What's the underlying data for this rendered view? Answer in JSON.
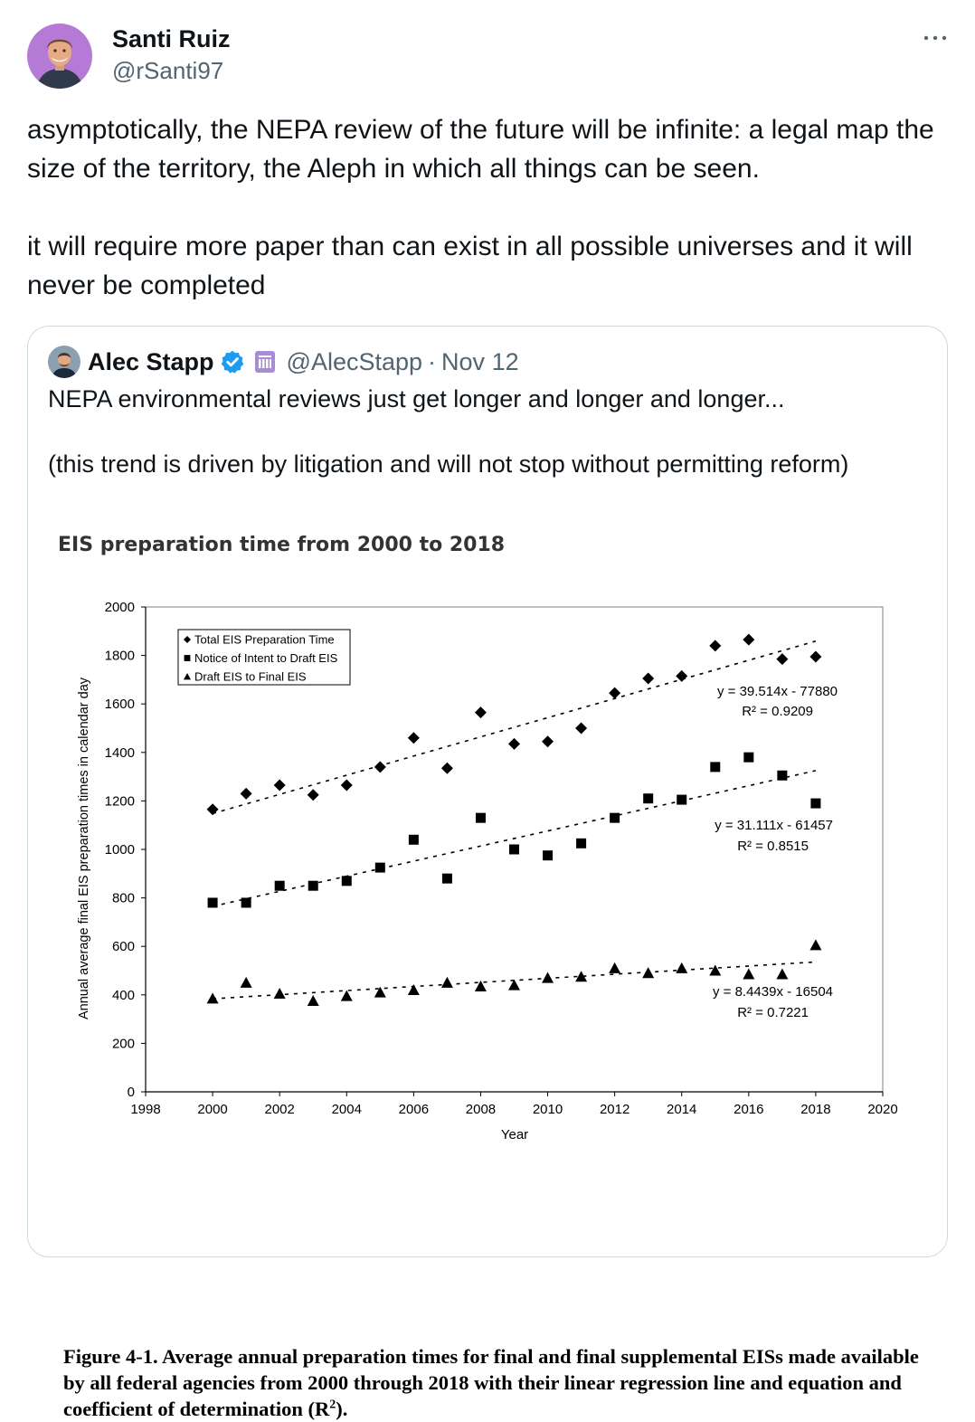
{
  "tweet": {
    "author_name": "Santi Ruiz",
    "author_handle": "@rSanti97",
    "more_icon": "more-horizontal-icon",
    "text_p1": "asymptotically, the NEPA review of the future will be infinite: a legal map the size of the territory, the Aleph in which all things can be seen.",
    "text_p2": "it will require more paper than can exist in all possible universes and it will never be completed"
  },
  "quote": {
    "author_name": "Alec Stapp",
    "author_handle": "@AlecStapp",
    "separator": "·",
    "date": "Nov 12",
    "verified_icon": "verified-badge-icon",
    "affiliate_icon": "affiliate-badge-icon",
    "verified_color": "#1d9bf0",
    "affiliate_color": "#a98bd6",
    "text_p1": "NEPA environmental reviews just get longer and longer and longer...",
    "text_p2": "(this trend is driven by litigation and will not stop without permitting reform)"
  },
  "chart_data": {
    "type": "scatter",
    "title": "EIS preparation time from 2000 to 2018",
    "xlabel": "Year",
    "ylabel": "Annual average final EIS preparation times in calendar day",
    "xlim": [
      1998,
      2020
    ],
    "ylim": [
      0,
      2000
    ],
    "x_ticks": [
      1998,
      2000,
      2002,
      2004,
      2006,
      2008,
      2010,
      2012,
      2014,
      2016,
      2018,
      2020
    ],
    "y_ticks": [
      0,
      200,
      400,
      600,
      800,
      1000,
      1200,
      1400,
      1600,
      1800,
      2000
    ],
    "grid": false,
    "legend_position": "top-left",
    "x": [
      2000,
      2001,
      2002,
      2003,
      2004,
      2005,
      2006,
      2007,
      2008,
      2009,
      2010,
      2011,
      2012,
      2013,
      2014,
      2015,
      2016,
      2017,
      2018
    ],
    "series": [
      {
        "name": "Total  EIS Preparation Time",
        "marker": "diamond",
        "values": [
          1165,
          1230,
          1265,
          1225,
          1265,
          1340,
          1460,
          1335,
          1565,
          1435,
          1445,
          1500,
          1645,
          1705,
          1715,
          1840,
          1865,
          1785,
          1795
        ],
        "trendline": {
          "slope": 39.514,
          "intercept": -77880
        },
        "equation": "y = 39.514x - 77880",
        "r2": "R² = 0.9209"
      },
      {
        "name": "Notice of Intent to Draft EIS",
        "marker": "square",
        "values": [
          780,
          780,
          850,
          850,
          870,
          925,
          1040,
          880,
          1130,
          1000,
          975,
          1025,
          1130,
          1210,
          1205,
          1340,
          1380,
          1305,
          1190
        ],
        "trendline": {
          "slope": 31.111,
          "intercept": -61457
        },
        "equation": "y = 31.111x - 61457",
        "r2": "R² = 0.8515"
      },
      {
        "name": "Draft EIS to Final EIS",
        "marker": "triangle",
        "values": [
          385,
          450,
          405,
          375,
          395,
          410,
          420,
          450,
          435,
          440,
          470,
          475,
          510,
          490,
          510,
          500,
          485,
          485,
          605
        ],
        "trendline": {
          "slope": 8.4439,
          "intercept": -16504
        },
        "equation": "y = 8.4439x - 16504",
        "r2": "R² = 0.7221"
      }
    ],
    "caption_main": "Figure 4-1. Average annual preparation times for final and final supplemental EISs made available by all federal agencies from 2000 through 2018 with their linear regression line and equation and coefficient of determination (R",
    "caption_sup": "2",
    "caption_end": ")."
  }
}
